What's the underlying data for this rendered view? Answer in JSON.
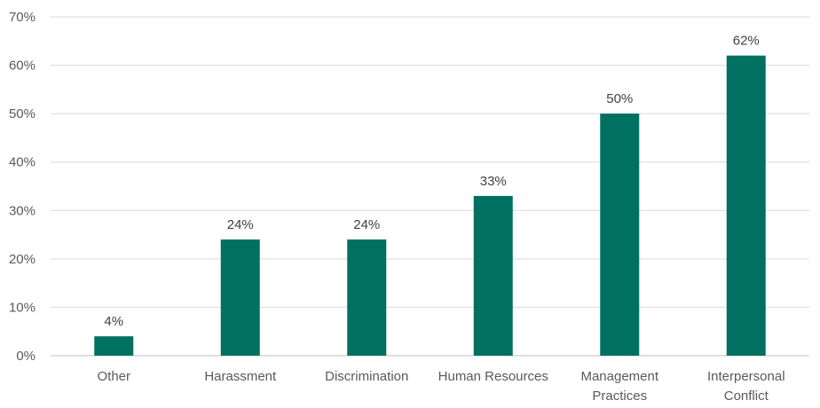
{
  "chart_data": {
    "type": "bar",
    "categories": [
      [
        "Other"
      ],
      [
        "Harassment"
      ],
      [
        "Discrimination"
      ],
      [
        "Human Resources"
      ],
      [
        "Management",
        "Practices"
      ],
      [
        "Interpersonal",
        "Conflict"
      ]
    ],
    "values": [
      4,
      24,
      24,
      33,
      50,
      62
    ],
    "data_labels": [
      "4%",
      "24%",
      "24%",
      "33%",
      "50%",
      "62%"
    ],
    "y_ticks": [
      "0%",
      "10%",
      "20%",
      "30%",
      "40%",
      "50%",
      "60%",
      "70%"
    ],
    "ylim": [
      0,
      70
    ],
    "y_tick_step": 10,
    "grid": true,
    "legend": "none",
    "colors": {
      "bar": "#007060",
      "grid": "#d9d9d9",
      "axis": "#bfbfbf"
    }
  }
}
